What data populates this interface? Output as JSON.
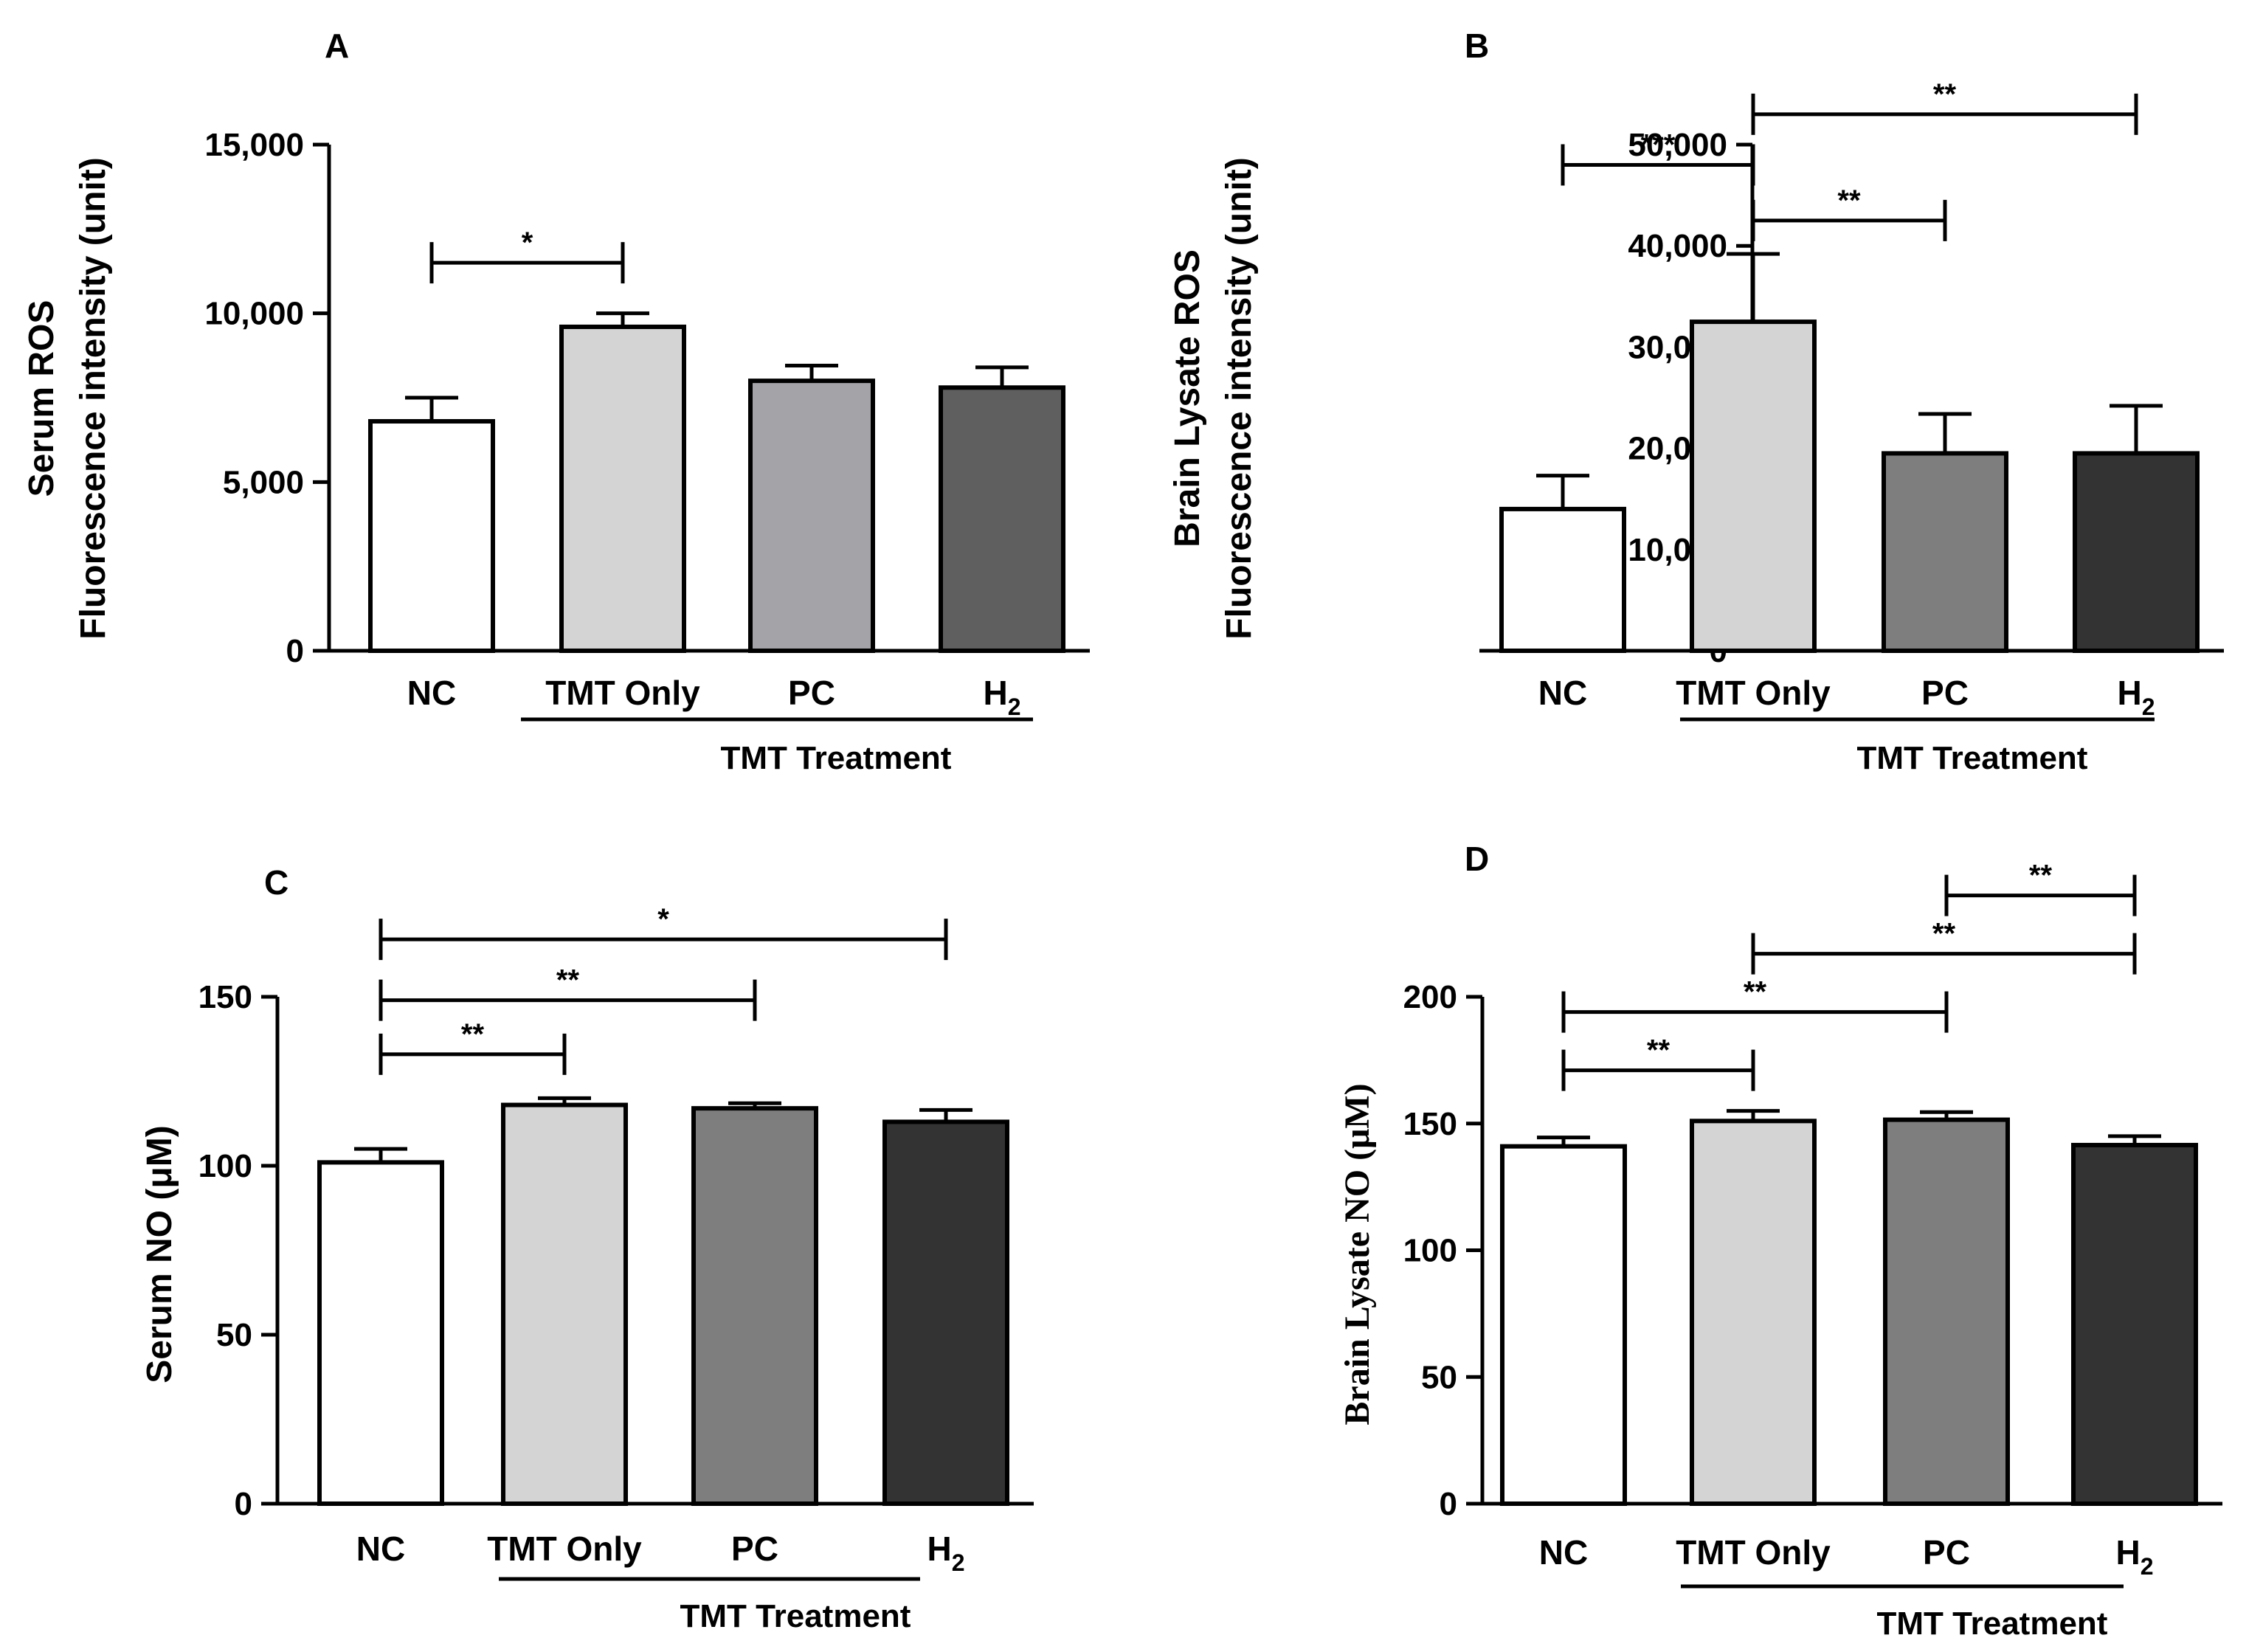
{
  "chart_data": [
    {
      "panel": "A",
      "type": "bar",
      "ylabel": "Serum ROS",
      "ylabel2": "Fluorescence intensity (unit)",
      "ylabel_font": "sans",
      "ylim": [
        0,
        15000
      ],
      "yticks": [
        0,
        5000,
        10000,
        15000
      ],
      "ytick_labels": [
        "0",
        "5,000",
        "10,000",
        "15,000"
      ],
      "categories": [
        "NC",
        "TMT Only",
        "PC",
        "H"
      ],
      "h2_index": 3,
      "values": [
        6800,
        9600,
        8000,
        7800
      ],
      "errors": [
        700,
        400,
        450,
        600
      ],
      "colors": [
        "#ffffff",
        "#d4d4d4",
        "#a4a4a8",
        "#5f5f5f"
      ],
      "group_label": "TMT Treatment",
      "significance": [
        {
          "from": 0,
          "to": 1,
          "level": 11500,
          "label": "*"
        }
      ]
    },
    {
      "panel": "B",
      "type": "bar",
      "ylabel": "Brain Lysate ROS",
      "ylabel2": "Fluorescence intensity (unit)",
      "ylabel_font": "sans",
      "ylim": [
        0,
        50000
      ],
      "yticks": [
        0,
        10000,
        20000,
        30000,
        40000,
        50000
      ],
      "ytick_labels": [
        "0",
        "10,000",
        "20,000",
        "30,000",
        "40,000",
        "50,000"
      ],
      "categories": [
        "NC",
        "TMT Only",
        "PC",
        "H"
      ],
      "h2_index": 3,
      "values": [
        14000,
        32500,
        19500,
        19500
      ],
      "errors": [
        3300,
        6700,
        3900,
        4700
      ],
      "colors": [
        "#ffffff",
        "#d4d4d4",
        "#7e7e7e",
        "#333333"
      ],
      "group_label": "TMT Treatment",
      "significance": [
        {
          "from": 0,
          "to": 1,
          "level": 48000,
          "label": "***"
        },
        {
          "from": 1,
          "to": 2,
          "level": 42500,
          "label": "**"
        },
        {
          "from": 1,
          "to": 3,
          "level": 53000,
          "label": "**"
        }
      ]
    },
    {
      "panel": "C",
      "type": "bar",
      "ylabel": "Serum NO (μM)",
      "ylabel_font": "sans",
      "ylim": [
        0,
        150
      ],
      "yticks": [
        0,
        50,
        100,
        150
      ],
      "ytick_labels": [
        "0",
        "50",
        "100",
        "150"
      ],
      "categories": [
        "NC",
        "TMT Only",
        "PC",
        "H"
      ],
      "h2_index": 3,
      "values": [
        101,
        118,
        117,
        113
      ],
      "errors": [
        4,
        2,
        1.5,
        3.5
      ],
      "colors": [
        "#ffffff",
        "#d4d4d4",
        "#7e7e7e",
        "#333333"
      ],
      "group_label": "TMT Treatment",
      "significance": [
        {
          "from": 0,
          "to": 1,
          "level": 133,
          "label": "**"
        },
        {
          "from": 0,
          "to": 2,
          "level": 149,
          "label": "**"
        },
        {
          "from": 0,
          "to": 3,
          "level": 167,
          "label": "*"
        }
      ]
    },
    {
      "panel": "D",
      "type": "bar",
      "ylabel": "Brain Lysate NO (μM)",
      "ylabel_font": "serif",
      "ylim": [
        0,
        200
      ],
      "yticks": [
        0,
        50,
        100,
        150,
        200
      ],
      "ytick_labels": [
        "0",
        "50",
        "100",
        "150",
        "200"
      ],
      "categories": [
        "NC",
        "TMT Only",
        "PC",
        "H"
      ],
      "h2_index": 3,
      "values": [
        141,
        151,
        151.5,
        141.5
      ],
      "errors": [
        3.5,
        4,
        3,
        3.5
      ],
      "colors": [
        "#ffffff",
        "#d4d4d4",
        "#7e7e7e",
        "#333333"
      ],
      "group_label": "TMT Treatment",
      "significance": [
        {
          "from": 0,
          "to": 1,
          "level": 171,
          "label": "**"
        },
        {
          "from": 0,
          "to": 2,
          "level": 194,
          "label": "**"
        },
        {
          "from": 1,
          "to": 3,
          "level": 217,
          "label": "**"
        },
        {
          "from": 2,
          "to": 3,
          "level": 240,
          "label": "**"
        }
      ]
    }
  ]
}
